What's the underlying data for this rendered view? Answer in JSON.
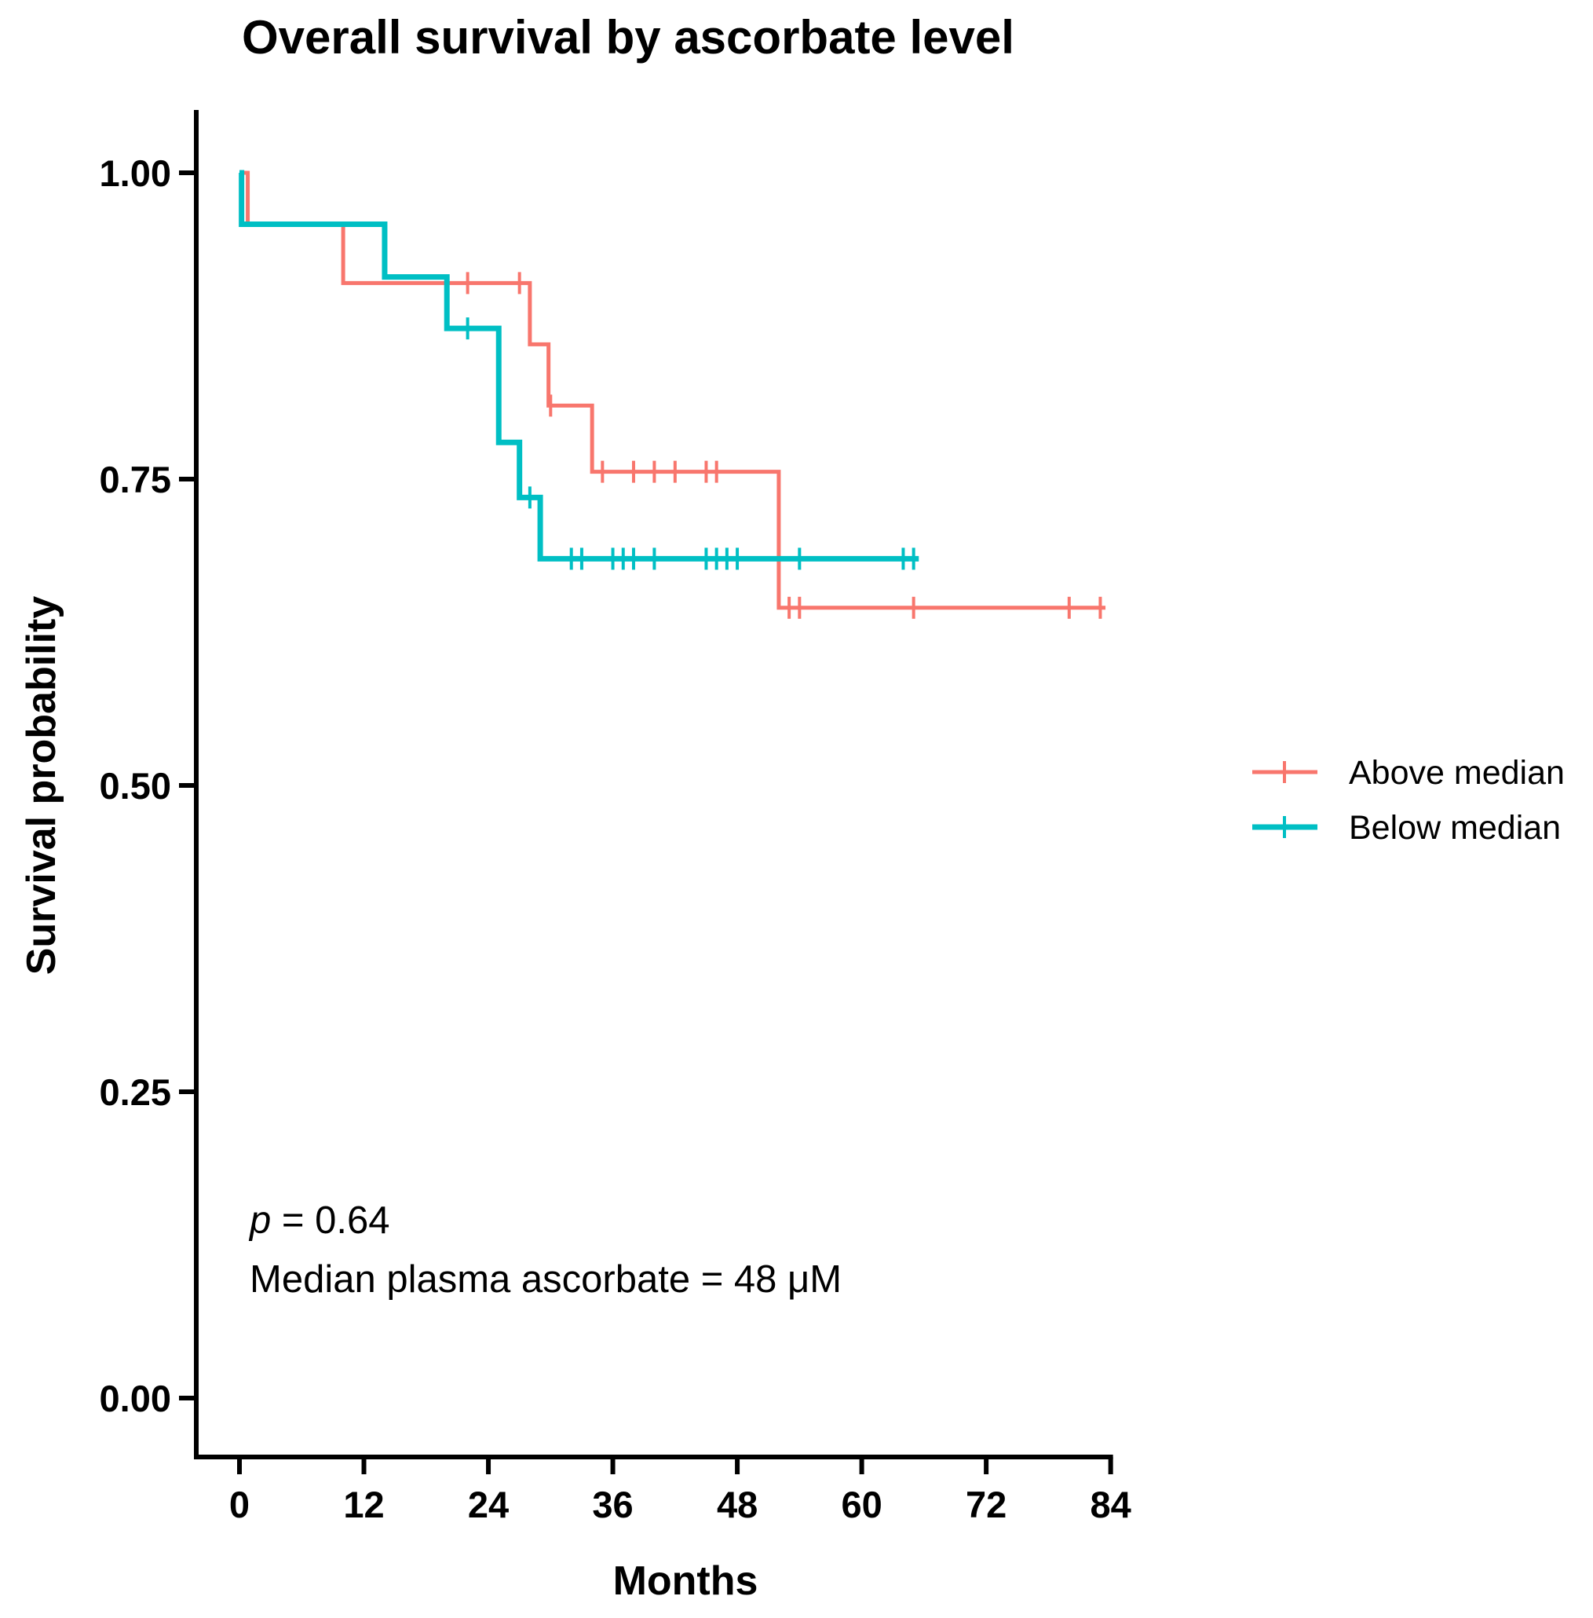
{
  "chart_data": {
    "type": "line",
    "subtype": "kaplan-meier",
    "title": "Overall survival by ascorbate level",
    "xlabel": "Months",
    "ylabel": "Survival probability",
    "xlim": [
      -4,
      84
    ],
    "ylim": [
      -0.05,
      1.05
    ],
    "xticks": [
      0,
      12,
      24,
      36,
      48,
      60,
      72,
      84
    ],
    "xtick_labels": [
      "0",
      "12",
      "24",
      "36",
      "48",
      "60",
      "72",
      "84"
    ],
    "yticks": [
      0,
      0.25,
      0.5,
      0.75,
      1.0
    ],
    "ytick_labels": [
      "0.00",
      "0.25",
      "0.50",
      "0.75",
      "1.00"
    ],
    "legend_position": "right",
    "series": [
      {
        "name": "Above median",
        "color": "#f8766d",
        "steps": [
          [
            0,
            1.0
          ],
          [
            0.8,
            0.958
          ],
          [
            10,
            0.91
          ],
          [
            28,
            0.86
          ],
          [
            29.8,
            0.81
          ],
          [
            34,
            0.756
          ],
          [
            52,
            0.645
          ],
          [
            83.5,
            0.645
          ]
        ],
        "censored": [
          [
            22,
            0.91
          ],
          [
            27,
            0.91
          ],
          [
            30,
            0.81
          ],
          [
            35,
            0.756
          ],
          [
            38,
            0.756
          ],
          [
            40,
            0.756
          ],
          [
            42,
            0.756
          ],
          [
            45,
            0.756
          ],
          [
            46,
            0.756
          ],
          [
            53,
            0.645
          ],
          [
            54,
            0.645
          ],
          [
            65,
            0.645
          ],
          [
            80,
            0.645
          ],
          [
            83,
            0.645
          ]
        ]
      },
      {
        "name": "Below median",
        "color": "#00bfc4",
        "steps": [
          [
            0,
            1.0
          ],
          [
            0.2,
            0.958
          ],
          [
            14,
            0.915
          ],
          [
            20,
            0.873
          ],
          [
            25,
            0.78
          ],
          [
            27,
            0.735
          ],
          [
            29,
            0.685
          ],
          [
            65.5,
            0.685
          ]
        ],
        "censored": [
          [
            22,
            0.873
          ],
          [
            28,
            0.735
          ],
          [
            32,
            0.685
          ],
          [
            33,
            0.685
          ],
          [
            36,
            0.685
          ],
          [
            37,
            0.685
          ],
          [
            38,
            0.685
          ],
          [
            40,
            0.685
          ],
          [
            45,
            0.685
          ],
          [
            46,
            0.685
          ],
          [
            47,
            0.685
          ],
          [
            48,
            0.685
          ],
          [
            54,
            0.685
          ],
          [
            64,
            0.685
          ],
          [
            65,
            0.685
          ]
        ]
      }
    ],
    "annotations": {
      "p_label": "p",
      "p_value": " = 0.64",
      "median_text": "Median plasma ascorbate = 48 μM"
    }
  }
}
